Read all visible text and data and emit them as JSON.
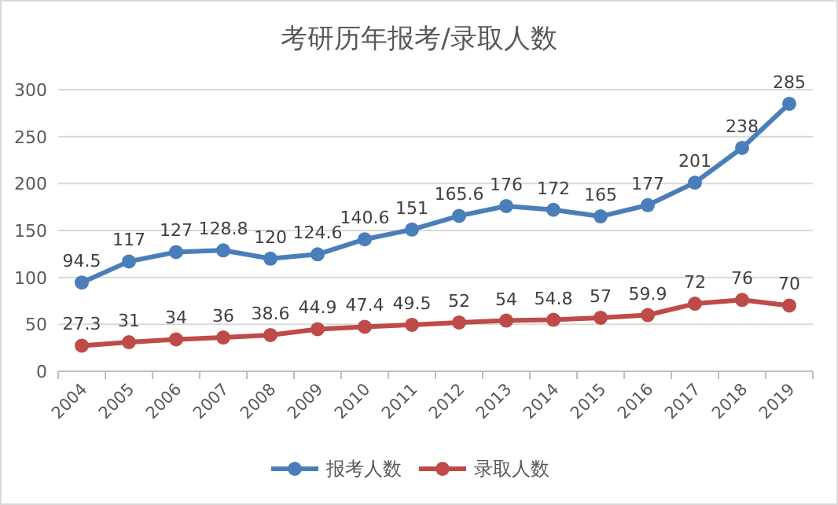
{
  "chart_data": {
    "type": "line",
    "title": "考研历年报考/录取人数",
    "categories": [
      "2004",
      "2005",
      "2006",
      "2007",
      "2008",
      "2009",
      "2010",
      "2011",
      "2012",
      "2013",
      "2014",
      "2015",
      "2016",
      "2017",
      "2018",
      "2019"
    ],
    "series": [
      {
        "name": "报考人数",
        "color": "#4a7ebb",
        "values": [
          94.5,
          117,
          127,
          128.8,
          120,
          124.6,
          140.6,
          151,
          165.6,
          176,
          172,
          165,
          177,
          201,
          238,
          285
        ]
      },
      {
        "name": "录取人数",
        "color": "#be4b48",
        "values": [
          27.3,
          31,
          34,
          36,
          38.6,
          44.9,
          47.4,
          49.5,
          52,
          54,
          54.8,
          57,
          59.9,
          72,
          76,
          70
        ]
      }
    ],
    "ylim": [
      0,
      300
    ],
    "yticks": [
      0,
      50,
      100,
      150,
      200,
      250,
      300
    ],
    "grid": "y",
    "legend": "bottom",
    "marker": "circle",
    "line_style": "solid",
    "data_labels": true
  }
}
